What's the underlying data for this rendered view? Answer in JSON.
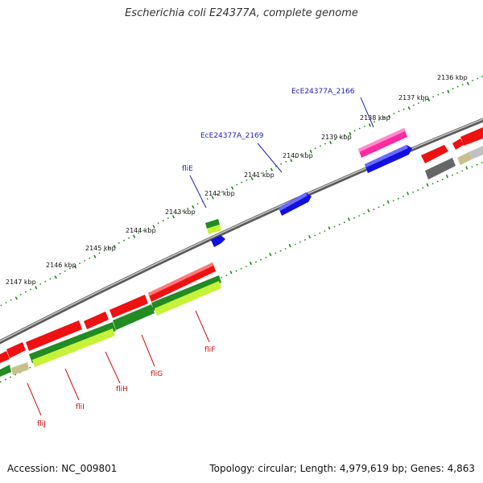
{
  "title": "Escherichia coli E24377A, complete genome",
  "footer": {
    "accession": "Accession: NC_009801",
    "summary": "Topology: circular; Length: 4,979,619 bp; Genes: 4,863"
  },
  "colors": {
    "backbone": "#8a8a8a",
    "tick": "#1a8a1a",
    "gene_red": "#ee1111",
    "gene_blue": "#1111dd",
    "gene_magenta": "#ff2aa0",
    "gene_dark_green": "#228b22",
    "gene_light_green": "#c6f23a",
    "gene_grey": "#666666",
    "gene_khaki": "#c8c08a",
    "label_blue": "#2222bb",
    "label_red": "#cc1111"
  },
  "scale": {
    "unit": "kbp",
    "tick_labels": [
      "2136 kbp",
      "2137 kbp",
      "2138 kbp",
      "2139 kbp",
      "2140 kbp",
      "2141 kbp",
      "2142 kbp",
      "2143 kbp",
      "2144 kbp",
      "2145 kbp",
      "2146 kbp",
      "2147 kbp"
    ]
  },
  "gene_labels": {
    "top": [
      "EcE24377A_2166",
      "EcE24377A_2169",
      "fliE"
    ],
    "bottom": [
      "fliF",
      "fliG",
      "fliH",
      "fliI",
      "fliJ"
    ]
  }
}
